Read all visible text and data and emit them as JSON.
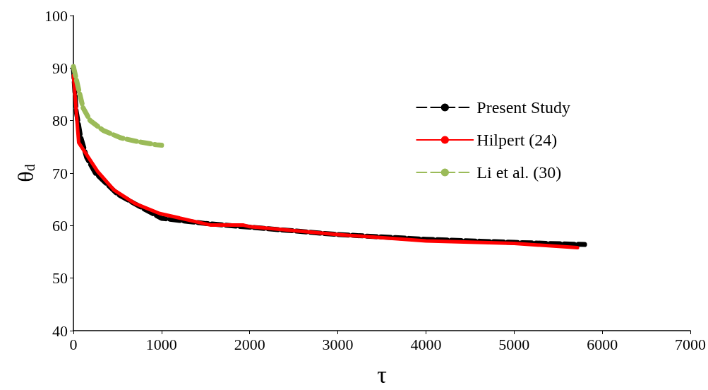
{
  "chart_data": {
    "type": "line",
    "xlabel": "τ",
    "ylabel": "θ$_{d}$",
    "xlim": [
      0,
      7000
    ],
    "xticks": [
      0,
      1000,
      2000,
      3000,
      4000,
      5000,
      6000,
      7000
    ],
    "ylim": [
      40,
      100
    ],
    "yticks": [
      40,
      50,
      60,
      70,
      80,
      90,
      100
    ],
    "grid": false,
    "legend": "right",
    "marker": "none",
    "series": [
      {
        "name": "Present Study",
        "color": "#000000",
        "line_style": "dashed",
        "x": [
          0,
          30,
          80,
          150,
          250,
          500,
          800,
          1000,
          1500,
          2000,
          3000,
          4000,
          5000,
          5800
        ],
        "values": [
          90,
          82,
          77,
          73,
          70,
          66,
          63.2,
          61.4,
          60.4,
          59.7,
          58.3,
          57.4,
          56.8,
          56.4
        ]
      },
      {
        "name": "Hilpert (24)",
        "color": "#ff0000",
        "line_style": "solid",
        "x": [
          0,
          60,
          280,
          460,
          700,
          980,
          1560,
          1930,
          2000,
          3000,
          4000,
          5000,
          5720
        ],
        "values": [
          88.6,
          75.8,
          70.2,
          66.8,
          64.2,
          62.3,
          60.1,
          60.1,
          59.8,
          58.3,
          57.1,
          56.6,
          55.8
        ]
      },
      {
        "name": "Li et al. (30)",
        "color": "#9bbb59",
        "line_style": "dashed",
        "x": [
          0,
          50,
          110,
          190,
          340,
          540,
          730,
          940,
          1000
        ],
        "values": [
          90.3,
          86.6,
          82.4,
          80,
          78.1,
          76.7,
          76,
          75.4,
          75.3
        ]
      }
    ]
  }
}
